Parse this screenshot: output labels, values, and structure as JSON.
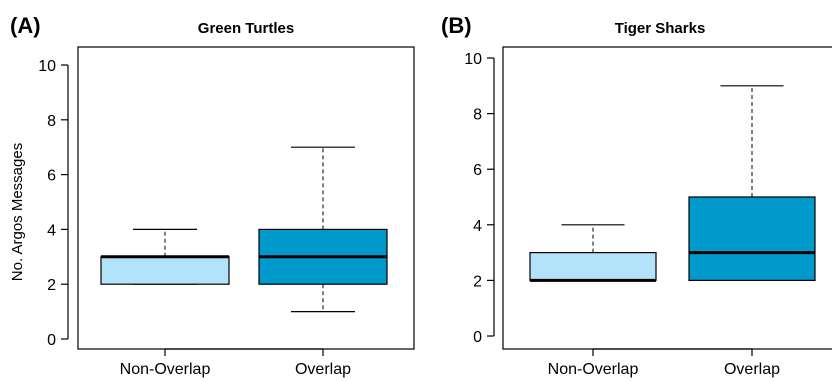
{
  "chart_data": [
    {
      "type": "box",
      "panel_label": "(A)",
      "title": "Green Turtles",
      "ylabel": "No. Argos Messages",
      "xlabel": "",
      "ylim": [
        0,
        10
      ],
      "yticks": [
        "0",
        "2",
        "4",
        "6",
        "8",
        "10"
      ],
      "categories": [
        "Non-Overlap",
        "Overlap"
      ],
      "boxes": [
        {
          "category": "Non-Overlap",
          "whisker_low": 2,
          "q1": 2,
          "median": 3,
          "q3": 3,
          "whisker_high": 4,
          "color": "#b3e2fb"
        },
        {
          "category": "Overlap",
          "whisker_low": 1,
          "q1": 2,
          "median": 3,
          "q3": 4,
          "whisker_high": 7,
          "color": "#0099cc"
        }
      ]
    },
    {
      "type": "box",
      "panel_label": "(B)",
      "title": "Tiger Sharks",
      "ylabel": "",
      "xlabel": "",
      "ylim": [
        0,
        10
      ],
      "yticks": [
        "0",
        "2",
        "4",
        "6",
        "8",
        "10"
      ],
      "categories": [
        "Non-Overlap",
        "Overlap"
      ],
      "boxes": [
        {
          "category": "Non-Overlap",
          "whisker_low": 2,
          "q1": 2,
          "median": 2,
          "q3": 3,
          "whisker_high": 4,
          "color": "#b3e2fb"
        },
        {
          "category": "Overlap",
          "whisker_low": 2,
          "q1": 2,
          "median": 3,
          "q3": 5,
          "whisker_high": 9,
          "color": "#0099cc"
        }
      ]
    }
  ]
}
